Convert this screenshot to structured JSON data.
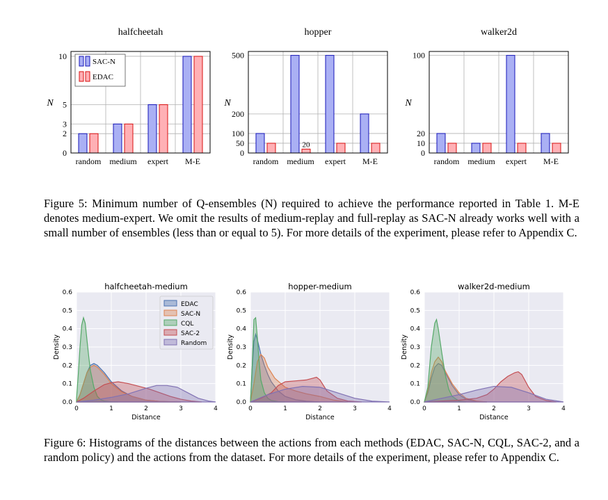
{
  "figure5": {
    "caption": "Figure 5: Minimum number of Q-ensembles (N) required to achieve the performance reported in Table 1. M-E denotes medium-expert. We omit the results of medium-replay and full-replay as SAC-N already works well with a small number of ensembles (less than or equal to 5). For more details of the experiment, please refer to Appendix C.",
    "colors": {
      "sac": "#aab0f4",
      "sac_edge": "#1515b8",
      "edac": "#ffb0b5",
      "edac_edge": "#d81010"
    }
  },
  "figure6": {
    "caption": "Figure 6: Histograms of the distances between the actions from each methods (EDAC, SAC-N, CQL, SAC-2, and a random policy) and the actions from the dataset. For more details of the experiment, please refer to Appendix C.",
    "legend": [
      "EDAC",
      "SAC-N",
      "CQL",
      "SAC-2",
      "Random"
    ],
    "colors": {
      "EDAC": "#4c72b0",
      "SAC-N": "#dd8452",
      "CQL": "#55a868",
      "SAC-2": "#c44e52",
      "Random": "#8172b3"
    }
  },
  "chart_data": [
    {
      "type": "bar",
      "title": "halfcheetah",
      "ylabel": "N",
      "categories": [
        "random",
        "medium",
        "expert",
        "M-E"
      ],
      "series": [
        {
          "name": "SAC-N",
          "values": [
            2,
            3,
            5,
            10
          ]
        },
        {
          "name": "EDAC",
          "values": [
            2,
            3,
            5,
            10
          ]
        }
      ],
      "ylim": [
        0,
        10.5
      ],
      "yticks": [
        "0",
        "2",
        "3",
        "5",
        "10"
      ],
      "ytick_values": [
        0,
        2,
        3,
        5,
        10
      ],
      "legend": "top-left",
      "grid": true
    },
    {
      "type": "bar",
      "title": "hopper",
      "ylabel": "N",
      "categories": [
        "random",
        "medium",
        "expert",
        "M-E"
      ],
      "series": [
        {
          "name": "SAC-N",
          "values": [
            100,
            500,
            500,
            200
          ]
        },
        {
          "name": "EDAC",
          "values": [
            50,
            20,
            50,
            50
          ]
        }
      ],
      "ylim": [
        0,
        520
      ],
      "yticks": [
        "0",
        "50",
        "100",
        "200",
        "500"
      ],
      "ytick_values": [
        0,
        50,
        100,
        200,
        500
      ],
      "annotations": [
        "20"
      ],
      "grid": true
    },
    {
      "type": "bar",
      "title": "walker2d",
      "ylabel": "N",
      "categories": [
        "random",
        "medium",
        "expert",
        "M-E"
      ],
      "series": [
        {
          "name": "SAC-N",
          "values": [
            20,
            10,
            100,
            20
          ]
        },
        {
          "name": "EDAC",
          "values": [
            10,
            10,
            10,
            10
          ]
        }
      ],
      "ylim": [
        0,
        104
      ],
      "yticks": [
        "0",
        "10",
        "20",
        "100"
      ],
      "ytick_values": [
        0,
        10,
        20,
        100
      ],
      "grid": true
    },
    {
      "type": "area",
      "title": "halfcheetah-medium",
      "xlabel": "Distance",
      "ylabel": "Density",
      "xlim": [
        0,
        4
      ],
      "ylim": [
        0,
        0.6
      ],
      "xticks": [
        "0",
        "1",
        "2",
        "3",
        "4"
      ],
      "xtick_values": [
        0,
        1,
        2,
        3,
        4
      ],
      "yticks": [
        "0.0",
        "0.1",
        "0.2",
        "0.3",
        "0.4",
        "0.5",
        "0.6"
      ],
      "ytick_values": [
        0,
        0.1,
        0.2,
        0.3,
        0.4,
        0.5,
        0.6
      ],
      "legend": "top-right",
      "series": [
        {
          "name": "EDAC",
          "x": [
            0,
            0.1,
            0.2,
            0.3,
            0.4,
            0.5,
            0.6,
            0.8,
            1.0,
            1.3,
            1.6,
            2.0,
            2.4,
            3.0
          ],
          "y": [
            0,
            0.04,
            0.1,
            0.16,
            0.2,
            0.21,
            0.2,
            0.16,
            0.11,
            0.06,
            0.03,
            0.01,
            0.003,
            0
          ]
        },
        {
          "name": "SAC-N",
          "x": [
            0,
            0.1,
            0.2,
            0.3,
            0.4,
            0.5,
            0.6,
            0.8,
            1.0,
            1.3,
            1.6,
            2.0,
            2.4,
            3.0
          ],
          "y": [
            0,
            0.04,
            0.1,
            0.16,
            0.19,
            0.2,
            0.19,
            0.15,
            0.1,
            0.055,
            0.03,
            0.01,
            0.003,
            0
          ]
        },
        {
          "name": "CQL",
          "x": [
            0,
            0.05,
            0.1,
            0.15,
            0.2,
            0.25,
            0.3,
            0.35,
            0.4,
            0.5,
            0.6,
            0.7,
            0.8,
            1.0,
            1.2
          ],
          "y": [
            0.02,
            0.15,
            0.3,
            0.42,
            0.46,
            0.43,
            0.34,
            0.25,
            0.17,
            0.08,
            0.03,
            0.012,
            0.005,
            0.001,
            0
          ]
        },
        {
          "name": "SAC-2",
          "x": [
            0,
            0.2,
            0.5,
            0.8,
            1.0,
            1.2,
            1.5,
            1.8,
            2.1,
            2.4,
            2.7,
            3.0,
            3.3,
            3.6
          ],
          "y": [
            0,
            0.02,
            0.06,
            0.095,
            0.105,
            0.11,
            0.1,
            0.085,
            0.07,
            0.05,
            0.03,
            0.015,
            0.005,
            0
          ]
        },
        {
          "name": "Random",
          "x": [
            0,
            0.5,
            1.0,
            1.5,
            2.0,
            2.3,
            2.6,
            2.9,
            3.2,
            3.5,
            3.8,
            4.0
          ],
          "y": [
            0,
            0.01,
            0.025,
            0.045,
            0.075,
            0.09,
            0.09,
            0.08,
            0.05,
            0.02,
            0.005,
            0
          ]
        }
      ]
    },
    {
      "type": "area",
      "title": "hopper-medium",
      "xlabel": "Distance",
      "ylabel": "Density",
      "xlim": [
        0,
        4
      ],
      "ylim": [
        0,
        0.6
      ],
      "xticks": [
        "0",
        "1",
        "2",
        "3",
        "4"
      ],
      "xtick_values": [
        0,
        1,
        2,
        3,
        4
      ],
      "yticks": [
        "0.0",
        "0.1",
        "0.2",
        "0.3",
        "0.4",
        "0.5",
        "0.6"
      ],
      "ytick_values": [
        0,
        0.1,
        0.2,
        0.3,
        0.4,
        0.5,
        0.6
      ],
      "series": [
        {
          "name": "EDAC",
          "x": [
            0,
            0.05,
            0.1,
            0.15,
            0.2,
            0.3,
            0.4,
            0.5,
            0.6,
            0.8,
            1.0,
            1.3,
            1.6,
            2.0
          ],
          "y": [
            0,
            0.18,
            0.33,
            0.37,
            0.34,
            0.26,
            0.2,
            0.15,
            0.11,
            0.06,
            0.03,
            0.012,
            0.004,
            0
          ]
        },
        {
          "name": "SAC-N",
          "x": [
            0,
            0.1,
            0.2,
            0.3,
            0.4,
            0.5,
            0.7,
            1.0,
            1.3,
            1.6,
            2.0,
            2.4,
            2.8
          ],
          "y": [
            0,
            0.1,
            0.22,
            0.26,
            0.24,
            0.19,
            0.13,
            0.08,
            0.06,
            0.045,
            0.03,
            0.01,
            0
          ]
        },
        {
          "name": "CQL",
          "x": [
            0,
            0.05,
            0.1,
            0.15,
            0.2,
            0.25,
            0.3,
            0.4,
            0.5,
            0.6,
            0.8,
            1.0
          ],
          "y": [
            0,
            0.2,
            0.45,
            0.46,
            0.35,
            0.22,
            0.12,
            0.05,
            0.02,
            0.008,
            0.002,
            0
          ]
        },
        {
          "name": "SAC-2",
          "x": [
            0,
            0.3,
            0.6,
            0.8,
            1.0,
            1.3,
            1.6,
            1.8,
            1.9,
            2.0,
            2.2,
            2.5,
            2.8,
            3.2
          ],
          "y": [
            0,
            0.02,
            0.05,
            0.09,
            0.11,
            0.115,
            0.12,
            0.13,
            0.135,
            0.12,
            0.06,
            0.02,
            0.005,
            0
          ]
        },
        {
          "name": "Random",
          "x": [
            0,
            0.5,
            1.0,
            1.5,
            2.0,
            2.5,
            3.0,
            3.5,
            4.0
          ],
          "y": [
            0,
            0.04,
            0.07,
            0.085,
            0.08,
            0.05,
            0.02,
            0.004,
            0
          ]
        }
      ]
    },
    {
      "type": "area",
      "title": "walker2d-medium",
      "xlabel": "Distance",
      "ylabel": "Density",
      "xlim": [
        0,
        4
      ],
      "ylim": [
        0,
        0.6
      ],
      "xticks": [
        "0",
        "1",
        "2",
        "3",
        "4"
      ],
      "xtick_values": [
        0,
        1,
        2,
        3,
        4
      ],
      "yticks": [
        "0.0",
        "0.1",
        "0.2",
        "0.3",
        "0.4",
        "0.5",
        "0.6"
      ],
      "ytick_values": [
        0,
        0.1,
        0.2,
        0.3,
        0.4,
        0.5,
        0.6
      ],
      "series": [
        {
          "name": "EDAC",
          "x": [
            0,
            0.1,
            0.2,
            0.3,
            0.4,
            0.5,
            0.6,
            0.8,
            1.0,
            1.2,
            1.5,
            1.8
          ],
          "y": [
            0,
            0.05,
            0.13,
            0.19,
            0.21,
            0.2,
            0.16,
            0.09,
            0.04,
            0.015,
            0.003,
            0
          ]
        },
        {
          "name": "SAC-N",
          "x": [
            0,
            0.1,
            0.2,
            0.3,
            0.4,
            0.5,
            0.6,
            0.8,
            1.0,
            1.2,
            1.5,
            1.8
          ],
          "y": [
            0,
            0.06,
            0.16,
            0.22,
            0.245,
            0.22,
            0.17,
            0.1,
            0.05,
            0.02,
            0.005,
            0
          ]
        },
        {
          "name": "CQL",
          "x": [
            0,
            0.1,
            0.2,
            0.3,
            0.35,
            0.4,
            0.5,
            0.6,
            0.7,
            0.8,
            1.0,
            1.2
          ],
          "y": [
            0,
            0.08,
            0.3,
            0.43,
            0.45,
            0.4,
            0.27,
            0.15,
            0.07,
            0.03,
            0.005,
            0
          ]
        },
        {
          "name": "SAC-2",
          "x": [
            0,
            0.5,
            1.0,
            1.5,
            1.8,
            2.0,
            2.2,
            2.4,
            2.6,
            2.7,
            2.8,
            3.0,
            3.2,
            3.5,
            3.8
          ],
          "y": [
            0,
            0.005,
            0.01,
            0.02,
            0.04,
            0.07,
            0.11,
            0.14,
            0.16,
            0.165,
            0.15,
            0.08,
            0.03,
            0.008,
            0
          ]
        },
        {
          "name": "Random",
          "x": [
            0,
            0.5,
            1.0,
            1.5,
            2.0,
            2.5,
            3.0,
            3.5,
            4.0
          ],
          "y": [
            0,
            0.02,
            0.04,
            0.065,
            0.085,
            0.08,
            0.05,
            0.015,
            0
          ]
        }
      ]
    }
  ]
}
